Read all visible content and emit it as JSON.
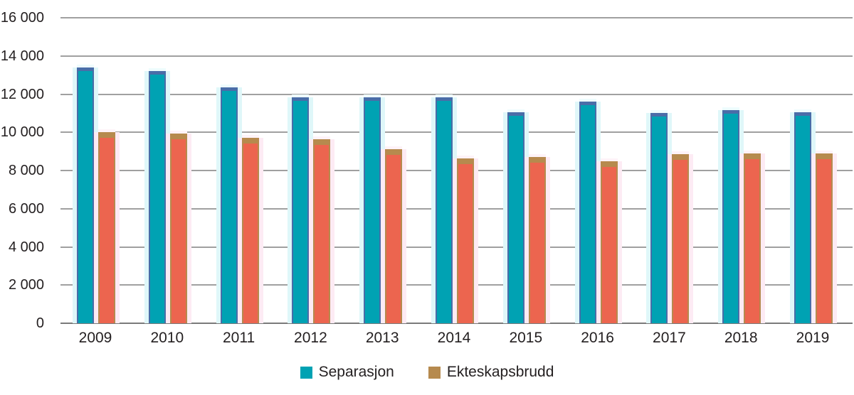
{
  "chart_data": {
    "type": "bar",
    "title": "",
    "xlabel": "",
    "ylabel": "",
    "categories": [
      "2009",
      "2010",
      "2011",
      "2012",
      "2013",
      "2014",
      "2015",
      "2016",
      "2017",
      "2018",
      "2019"
    ],
    "series": [
      {
        "name": "Separasjon",
        "fill_color": "#00a2b3",
        "edge_color": "#4a6da8",
        "legend_color": "#00a2b3",
        "values": [
          13400,
          13200,
          12350,
          11850,
          11850,
          11850,
          11050,
          11600,
          11000,
          11150,
          11050
        ]
      },
      {
        "name": "Ekteskapsbrudd",
        "fill_color": "#ec654f",
        "edge_color": "#b68a4e",
        "legend_color": "#b68a4e",
        "values": [
          10000,
          9950,
          9700,
          9650,
          9100,
          8650,
          8700,
          8500,
          8850,
          8900,
          8900
        ]
      }
    ],
    "ylim": [
      0,
      16000
    ],
    "ytick_step": 2000,
    "ytick_labels": [
      "0",
      "2 000",
      "4 000",
      "6 000",
      "8 000",
      "10 000",
      "12 000",
      "14 000",
      "16 000"
    ],
    "grid": true,
    "gridline_color": "#a0a0a0",
    "axis_text_color": "#231f20",
    "legend_position": "bottom"
  }
}
